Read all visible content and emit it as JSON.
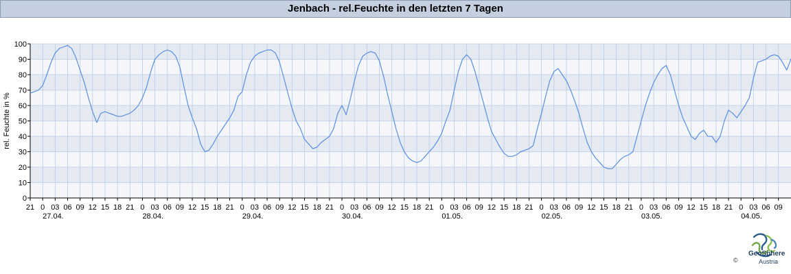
{
  "title": "Jenbach - rel.Feuchte in den letzten 7 Tagen",
  "logo": {
    "name": "GeoSphere",
    "sub": "Austria",
    "copyright": "©"
  },
  "colors": {
    "line": "#5b8ee0",
    "band_dark": "#e4e9f2",
    "band_light": "#f4f6fa",
    "grid": "#b9cbe6",
    "title_bg": "#c4d0e0"
  },
  "chart_data": {
    "type": "line",
    "title": "Jenbach - rel.Feuchte in den letzten 7 Tagen",
    "ylabel": "rel. Feuchte in %",
    "xlabel": "",
    "ylim": [
      0,
      100
    ],
    "yticks": [
      0,
      10,
      20,
      30,
      40,
      50,
      60,
      70,
      80,
      90,
      100
    ],
    "xlim_hours": [
      0,
      186
    ],
    "x_unit": "hours since 26.04. 21:00",
    "hour_tick_labels": [
      "21",
      "0",
      "03",
      "06",
      "09",
      "12",
      "15",
      "18",
      "21",
      "0",
      "03",
      "06",
      "09",
      "12",
      "15",
      "18",
      "21",
      "0",
      "03",
      "06",
      "09",
      "12",
      "15",
      "18",
      "21",
      "0",
      "03",
      "06",
      "09",
      "12",
      "15",
      "18",
      "21",
      "0",
      "03",
      "06",
      "09",
      "12",
      "15",
      "18",
      "21",
      "0",
      "03",
      "06",
      "09",
      "12",
      "15",
      "18",
      "21",
      "0",
      "03",
      "06",
      "09",
      "12",
      "15",
      "18",
      "21",
      "0",
      "03",
      "06",
      "09"
    ],
    "date_labels": [
      "27.04.",
      "28.04.",
      "29.04.",
      "30.04.",
      "01.05.",
      "02.05.",
      "03.05.",
      "04.05."
    ],
    "grid": true,
    "series": [
      {
        "x": [
          0,
          1,
          2,
          3,
          4,
          5,
          6,
          7,
          8,
          9,
          10,
          11,
          12,
          13,
          14,
          15,
          16,
          17,
          18,
          19,
          20,
          21,
          22,
          23,
          24,
          25,
          26,
          27,
          28,
          29,
          30,
          31,
          32,
          33,
          34,
          35,
          36,
          37,
          38,
          39,
          40,
          41,
          42,
          43,
          44,
          45,
          46,
          47,
          48,
          49,
          50,
          51,
          52,
          53,
          54,
          55,
          56,
          57,
          58,
          59,
          60,
          61,
          62,
          63,
          64,
          65,
          66,
          67,
          68,
          69,
          70,
          71,
          72,
          73,
          74,
          75,
          76,
          77,
          78,
          79,
          80,
          81,
          82,
          83,
          84,
          85,
          86,
          87,
          88,
          89,
          90,
          91,
          92,
          93,
          94,
          95,
          96,
          97,
          98,
          99,
          100,
          101,
          102,
          103,
          104,
          105,
          106,
          107,
          108,
          109,
          110,
          111,
          112,
          113,
          114,
          115,
          116,
          117,
          118,
          119,
          120,
          121,
          122,
          123,
          124,
          125,
          126,
          127,
          128,
          129,
          130,
          131,
          132,
          133,
          134,
          135,
          136,
          137,
          138,
          139,
          140,
          141,
          142,
          143,
          144,
          145,
          146,
          147,
          148,
          149,
          150,
          151,
          152,
          153,
          154,
          155,
          156,
          157,
          158,
          159,
          160,
          161,
          162,
          163,
          164,
          165,
          166,
          167,
          168,
          169,
          170,
          171,
          172,
          173,
          174,
          175,
          176,
          177,
          178,
          179,
          180,
          181,
          182,
          183,
          184,
          185,
          186
        ],
        "y": [
          68,
          69,
          70,
          73,
          80,
          88,
          94,
          97,
          98,
          99,
          97,
          91,
          83,
          75,
          65,
          56,
          49,
          55,
          56,
          55,
          54,
          53,
          53,
          54,
          55,
          57,
          60,
          65,
          72,
          82,
          90,
          93,
          95,
          96,
          95,
          92,
          85,
          72,
          60,
          52,
          45,
          35,
          30,
          31,
          35,
          40,
          44,
          48,
          52,
          57,
          66,
          69,
          80,
          88,
          92,
          94,
          95,
          96,
          96,
          94,
          88,
          78,
          68,
          58,
          50,
          45,
          38,
          35,
          32,
          33,
          36,
          38,
          40,
          45,
          55,
          60,
          54,
          64,
          76,
          86,
          92,
          94,
          95,
          94,
          89,
          79,
          67,
          56,
          45,
          36,
          30,
          26,
          24,
          23,
          24,
          27,
          30,
          33,
          37,
          42,
          50,
          57,
          70,
          82,
          90,
          93,
          90,
          82,
          72,
          62,
          52,
          43,
          38,
          33,
          29,
          27,
          27,
          28,
          30,
          31,
          32,
          34,
          45,
          55,
          66,
          76,
          82,
          84,
          80,
          76,
          70,
          63,
          55,
          45,
          36,
          30,
          26,
          23,
          20,
          19,
          19,
          22,
          25,
          27,
          28,
          30,
          40,
          50,
          60,
          68,
          75,
          80,
          84,
          86,
          80,
          70,
          60,
          52,
          46,
          40,
          38,
          42,
          44,
          40,
          40,
          36,
          40,
          50,
          57,
          55,
          52,
          56,
          60,
          65,
          78,
          88,
          89,
          90,
          92,
          93,
          92,
          88,
          83,
          90,
          92,
          91,
          90
        ]
      }
    ]
  }
}
